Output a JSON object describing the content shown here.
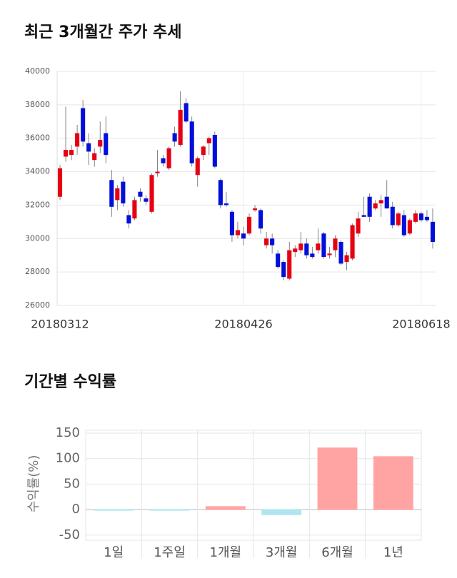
{
  "chart_data": [
    {
      "type": "candlestick",
      "title": "최근 3개월간 주가 추세",
      "categories": [
        "20180312",
        null,
        null,
        null,
        null,
        null,
        null,
        null,
        null,
        null,
        null,
        null,
        null,
        null,
        null,
        null,
        null,
        null,
        null,
        null,
        null,
        null,
        null,
        null,
        null,
        null,
        null,
        null,
        null,
        null,
        null,
        null,
        "20180426",
        null,
        null,
        null,
        null,
        null,
        null,
        null,
        null,
        null,
        null,
        null,
        null,
        null,
        null,
        null,
        null,
        null,
        null,
        null,
        null,
        null,
        null,
        null,
        null,
        null,
        null,
        null,
        null,
        null,
        null,
        "20180618",
        null,
        null
      ],
      "open": [
        32500,
        34900,
        35000,
        35500,
        37800,
        35700,
        34700,
        35500,
        36300,
        33500,
        32300,
        33400,
        31400,
        31200,
        32800,
        32400,
        31600,
        33900,
        34800,
        34200,
        36300,
        35600,
        38100,
        37000,
        33800,
        35000,
        35700,
        36200,
        33500,
        32100,
        31600,
        30200,
        30300,
        30300,
        31700,
        31700,
        29600,
        30000,
        29100,
        28600,
        27600,
        29200,
        29300,
        29700,
        29100,
        29300,
        30300,
        29000,
        29300,
        29800,
        28600,
        28800,
        30300,
        31400,
        32500,
        31800,
        32100,
        32500,
        31900,
        30800,
        31400,
        30300,
        31000,
        31500,
        31300,
        31000
      ],
      "high": [
        34400,
        37900,
        35600,
        36800,
        38300,
        36300,
        35400,
        37000,
        37300,
        34100,
        33200,
        33700,
        31700,
        32500,
        33000,
        32600,
        33900,
        35300,
        35000,
        35500,
        36700,
        38800,
        38400,
        37300,
        34900,
        35600,
        36100,
        36400,
        33600,
        32800,
        31700,
        31000,
        30700,
        31500,
        32000,
        31800,
        30400,
        30300,
        29300,
        28700,
        29800,
        29600,
        30400,
        30000,
        29500,
        30600,
        30400,
        29500,
        30200,
        29900,
        29200,
        30900,
        31600,
        32500,
        32700,
        32300,
        32600,
        33500,
        32200,
        31600,
        31700,
        31200,
        31700,
        31600,
        31700,
        31800
      ],
      "low": [
        32300,
        34600,
        34700,
        35000,
        35500,
        34400,
        34300,
        35100,
        34500,
        31300,
        31700,
        31900,
        30600,
        31100,
        32200,
        32000,
        31500,
        33700,
        34300,
        34100,
        35500,
        35500,
        36900,
        34300,
        33100,
        34700,
        35000,
        34200,
        31800,
        31900,
        29800,
        30000,
        29600,
        30200,
        31600,
        30300,
        29400,
        29100,
        28200,
        27500,
        27500,
        28900,
        29100,
        28800,
        28800,
        29100,
        28800,
        28800,
        28900,
        28400,
        28100,
        28700,
        30100,
        31300,
        31000,
        31700,
        31300,
        31800,
        30600,
        30700,
        30100,
        30200,
        30900,
        31000,
        31000,
        29400
      ],
      "close": [
        34200,
        35300,
        35300,
        36300,
        35800,
        35200,
        35100,
        35900,
        35000,
        31900,
        33000,
        32100,
        30900,
        32300,
        32500,
        32200,
        33800,
        34000,
        34500,
        35400,
        35800,
        37700,
        37000,
        34500,
        34800,
        35500,
        36000,
        34300,
        32000,
        32000,
        30200,
        30500,
        30000,
        31300,
        31800,
        30600,
        30000,
        29600,
        28300,
        27700,
        29300,
        29400,
        29700,
        29000,
        28900,
        29700,
        28900,
        29100,
        30000,
        28500,
        29000,
        30800,
        31200,
        31300,
        31300,
        32100,
        32300,
        31800,
        30800,
        31500,
        30200,
        31100,
        31500,
        31100,
        31100,
        29800
      ],
      "up_color": "#e60012",
      "down_color": "#0010d8",
      "ylim": [
        26000,
        40000
      ],
      "yticks": [
        26000,
        28000,
        30000,
        32000,
        34000,
        36000,
        38000,
        40000
      ],
      "grid": true
    },
    {
      "type": "bar",
      "title": "기간별 수익률",
      "y_label": "수익률(%)",
      "categories": [
        "1일",
        "1주일",
        "1개월",
        "3개월",
        "6개월",
        "1년"
      ],
      "values": [
        -0.5,
        -1,
        6,
        -10,
        121,
        104
      ],
      "colors": [
        "#aee6f0",
        "#aee6f0",
        "#ffa3a3",
        "#aee6f0",
        "#ffa3a3",
        "#ffa3a3"
      ],
      "ylim": [
        -60,
        150
      ],
      "yticks": [
        -50,
        0,
        50,
        100,
        150
      ],
      "grid": true
    }
  ]
}
